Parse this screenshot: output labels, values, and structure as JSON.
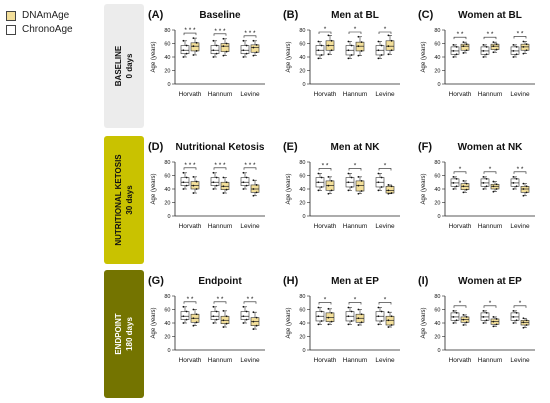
{
  "legend": {
    "dnamage": {
      "label": "DNAmAge",
      "color": "#f3df9a"
    },
    "chronoage": {
      "label": "ChronoAge",
      "color": "#ffffff"
    }
  },
  "phases": [
    {
      "name": "BASELINE",
      "days": "0 days",
      "color": "#ececec",
      "text_color": "#111111"
    },
    {
      "name": "NUTRITIONAL KETOSIS",
      "days": "30 days",
      "color": "#c9c200",
      "text_color": "#111111"
    },
    {
      "name": "ENDPOINT",
      "days": "180 days",
      "color": "#747400",
      "text_color": "#ffffff"
    }
  ],
  "chart_data": [
    {
      "type": "box",
      "panel": "(A)",
      "title": "Baseline",
      "ylabel": "Age (years)",
      "ylim": [
        0,
        80
      ],
      "yticks": [
        0,
        20,
        40,
        60,
        80
      ],
      "categories": [
        "Horvath",
        "Hannum",
        "Levine"
      ],
      "significance": [
        "* * *",
        "* * *",
        "* * *"
      ],
      "series": [
        {
          "name": "ChronoAge",
          "values": [
            [
              40,
              45,
              50,
              57,
              64
            ],
            [
              40,
              45,
              50,
              57,
              64
            ],
            [
              40,
              45,
              50,
              57,
              64
            ]
          ]
        },
        {
          "name": "DNAmAge",
          "values": [
            [
              43,
              49,
              56,
              61,
              68
            ],
            [
              42,
              48,
              56,
              60,
              67
            ],
            [
              42,
              47,
              54,
              58,
              64
            ]
          ]
        }
      ]
    },
    {
      "type": "box",
      "panel": "(B)",
      "title": "Men at BL",
      "ylabel": "Age (years)",
      "ylim": [
        0,
        80
      ],
      "yticks": [
        0,
        20,
        40,
        60,
        80
      ],
      "categories": [
        "Horvath",
        "Hannum",
        "Levine"
      ],
      "significance": [
        "*",
        "*",
        "*"
      ],
      "series": [
        {
          "name": "ChronoAge",
          "values": [
            [
              38,
              43,
              50,
              57,
              63
            ],
            [
              38,
              43,
              50,
              57,
              63
            ],
            [
              38,
              43,
              50,
              57,
              63
            ]
          ]
        },
        {
          "name": "DNAmAge",
          "values": [
            [
              44,
              50,
              57,
              64,
              72
            ],
            [
              42,
              49,
              56,
              62,
              70
            ],
            [
              44,
              50,
              56,
              64,
              72
            ]
          ]
        }
      ]
    },
    {
      "type": "box",
      "panel": "(C)",
      "title": "Women at BL",
      "ylabel": "Age (years)",
      "ylim": [
        0,
        80
      ],
      "yticks": [
        0,
        20,
        40,
        60,
        80
      ],
      "categories": [
        "Horvath",
        "Hannum",
        "Levine"
      ],
      "significance": [
        "* *",
        "* *",
        "* *"
      ],
      "series": [
        {
          "name": "ChronoAge",
          "values": [
            [
              40,
              44,
              49,
              55,
              58
            ],
            [
              40,
              44,
              49,
              55,
              58
            ],
            [
              40,
              44,
              49,
              55,
              58
            ]
          ]
        },
        {
          "name": "DNAmAge",
          "values": [
            [
              46,
              50,
              56,
              59,
              62
            ],
            [
              47,
              51,
              56,
              59,
              62
            ],
            [
              45,
              50,
              55,
              59,
              63
            ]
          ]
        }
      ]
    },
    {
      "type": "box",
      "panel": "(D)",
      "title": "Nutritional Ketosis",
      "ylabel": "Age (years)",
      "ylim": [
        0,
        80
      ],
      "yticks": [
        0,
        20,
        40,
        60,
        80
      ],
      "categories": [
        "Horvath",
        "Hannum",
        "Levine"
      ],
      "significance": [
        "* * *",
        "* * *",
        "* * *"
      ],
      "series": [
        {
          "name": "ChronoAge",
          "values": [
            [
              40,
              45,
              50,
              57,
              64
            ],
            [
              40,
              45,
              50,
              57,
              64
            ],
            [
              40,
              45,
              50,
              57,
              64
            ]
          ]
        },
        {
          "name": "DNAmAge",
          "values": [
            [
              34,
              40,
              45,
              51,
              58
            ],
            [
              34,
              39,
              44,
              50,
              57
            ],
            [
              30,
              35,
              40,
              46,
              53
            ]
          ]
        }
      ]
    },
    {
      "type": "box",
      "panel": "(E)",
      "title": "Men at NK",
      "ylabel": "Age (years)",
      "ylim": [
        0,
        80
      ],
      "yticks": [
        0,
        20,
        40,
        60,
        80
      ],
      "categories": [
        "Horvath",
        "Hannum",
        "Levine"
      ],
      "significance": [
        "* *",
        "*",
        "*"
      ],
      "series": [
        {
          "name": "ChronoAge",
          "values": [
            [
              38,
              43,
              50,
              57,
              63
            ],
            [
              38,
              43,
              50,
              57,
              63
            ],
            [
              38,
              43,
              50,
              57,
              63
            ]
          ]
        },
        {
          "name": "DNAmAge",
          "values": [
            [
              33,
              38,
              45,
              52,
              58
            ],
            [
              33,
              37,
              45,
              52,
              58
            ],
            [
              33,
              34,
              38,
              44,
              46
            ]
          ]
        }
      ]
    },
    {
      "type": "box",
      "panel": "(F)",
      "title": "Women at NK",
      "ylabel": "Age (years)",
      "ylim": [
        0,
        80
      ],
      "yticks": [
        0,
        20,
        40,
        60,
        80
      ],
      "categories": [
        "Horvath",
        "Hannum",
        "Levine"
      ],
      "significance": [
        "*",
        "*",
        "* *"
      ],
      "series": [
        {
          "name": "ChronoAge",
          "values": [
            [
              40,
              44,
              49,
              55,
              58
            ],
            [
              40,
              44,
              49,
              55,
              58
            ],
            [
              40,
              44,
              49,
              55,
              58
            ]
          ]
        },
        {
          "name": "DNAmAge",
          "values": [
            [
              35,
              39,
              44,
              48,
              52
            ],
            [
              36,
              40,
              44,
              47,
              51
            ],
            [
              30,
              35,
              40,
              44,
              48
            ]
          ]
        }
      ]
    },
    {
      "type": "box",
      "panel": "(G)",
      "title": "Endpoint",
      "ylabel": "Age (years)",
      "ylim": [
        0,
        80
      ],
      "yticks": [
        0,
        20,
        40,
        60,
        80
      ],
      "categories": [
        "Horvath",
        "Hannum",
        "Levine"
      ],
      "significance": [
        "* *",
        "* *",
        "* *"
      ],
      "series": [
        {
          "name": "ChronoAge",
          "values": [
            [
              40,
              45,
              50,
              57,
              64
            ],
            [
              40,
              45,
              50,
              57,
              64
            ],
            [
              40,
              45,
              50,
              57,
              64
            ]
          ]
        },
        {
          "name": "DNAmAge",
          "values": [
            [
              36,
              41,
              47,
              53,
              60
            ],
            [
              34,
              39,
              44,
              50,
              58
            ],
            [
              31,
              36,
              42,
              48,
              56
            ]
          ]
        }
      ]
    },
    {
      "type": "box",
      "panel": "(H)",
      "title": "Men at EP",
      "ylabel": "Age (years)",
      "ylim": [
        0,
        80
      ],
      "yticks": [
        0,
        20,
        40,
        60,
        80
      ],
      "categories": [
        "Horvath",
        "Hannum",
        "Levine"
      ],
      "significance": [
        "*",
        "*",
        "*"
      ],
      "series": [
        {
          "name": "ChronoAge",
          "values": [
            [
              38,
              43,
              50,
              57,
              63
            ],
            [
              38,
              43,
              50,
              57,
              63
            ],
            [
              38,
              43,
              50,
              57,
              63
            ]
          ]
        },
        {
          "name": "DNAmAge",
          "values": [
            [
              38,
              42,
              48,
              55,
              61
            ],
            [
              37,
              41,
              47,
              53,
              60
            ],
            [
              34,
              37,
              44,
              50,
              56
            ]
          ]
        }
      ]
    },
    {
      "type": "box",
      "panel": "(I)",
      "title": "Women at EP",
      "ylabel": "Age (years)",
      "ylim": [
        0,
        80
      ],
      "yticks": [
        0,
        20,
        40,
        60,
        80
      ],
      "categories": [
        "Horvath",
        "Hannum",
        "Levine"
      ],
      "significance": [
        "*",
        "*",
        "*"
      ],
      "series": [
        {
          "name": "ChronoAge",
          "values": [
            [
              40,
              44,
              49,
              55,
              58
            ],
            [
              40,
              44,
              49,
              55,
              58
            ],
            [
              40,
              44,
              49,
              55,
              58
            ]
          ]
        },
        {
          "name": "DNAmAge",
          "values": [
            [
              37,
              41,
              45,
              49,
              52
            ],
            [
              35,
              38,
              42,
              46,
              49
            ],
            [
              33,
              37,
              41,
              44,
              47
            ]
          ]
        }
      ]
    }
  ]
}
